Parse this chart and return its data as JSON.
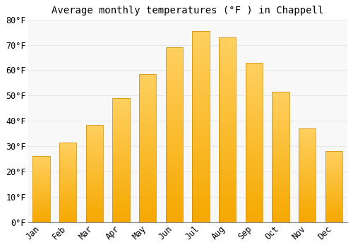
{
  "title": "Average monthly temperatures (°F ) in Chappell",
  "months": [
    "Jan",
    "Feb",
    "Mar",
    "Apr",
    "May",
    "Jun",
    "Jul",
    "Aug",
    "Sep",
    "Oct",
    "Nov",
    "Dec"
  ],
  "values": [
    26,
    31.5,
    38.5,
    49,
    58.5,
    69,
    75.5,
    73,
    63,
    51.5,
    37,
    28
  ],
  "bar_color_bottom": "#F5A800",
  "bar_color_top": "#FFD060",
  "ylim": [
    0,
    80
  ],
  "yticks": [
    0,
    10,
    20,
    30,
    40,
    50,
    60,
    70,
    80
  ],
  "ytick_labels": [
    "0°F",
    "10°F",
    "20°F",
    "30°F",
    "40°F",
    "50°F",
    "60°F",
    "70°F",
    "80°F"
  ],
  "background_color": "#FFFFFF",
  "plot_bg_color": "#F8F8F8",
  "grid_color": "#E8E8E8",
  "title_fontsize": 10,
  "tick_fontsize": 8.5,
  "font_family": "monospace"
}
